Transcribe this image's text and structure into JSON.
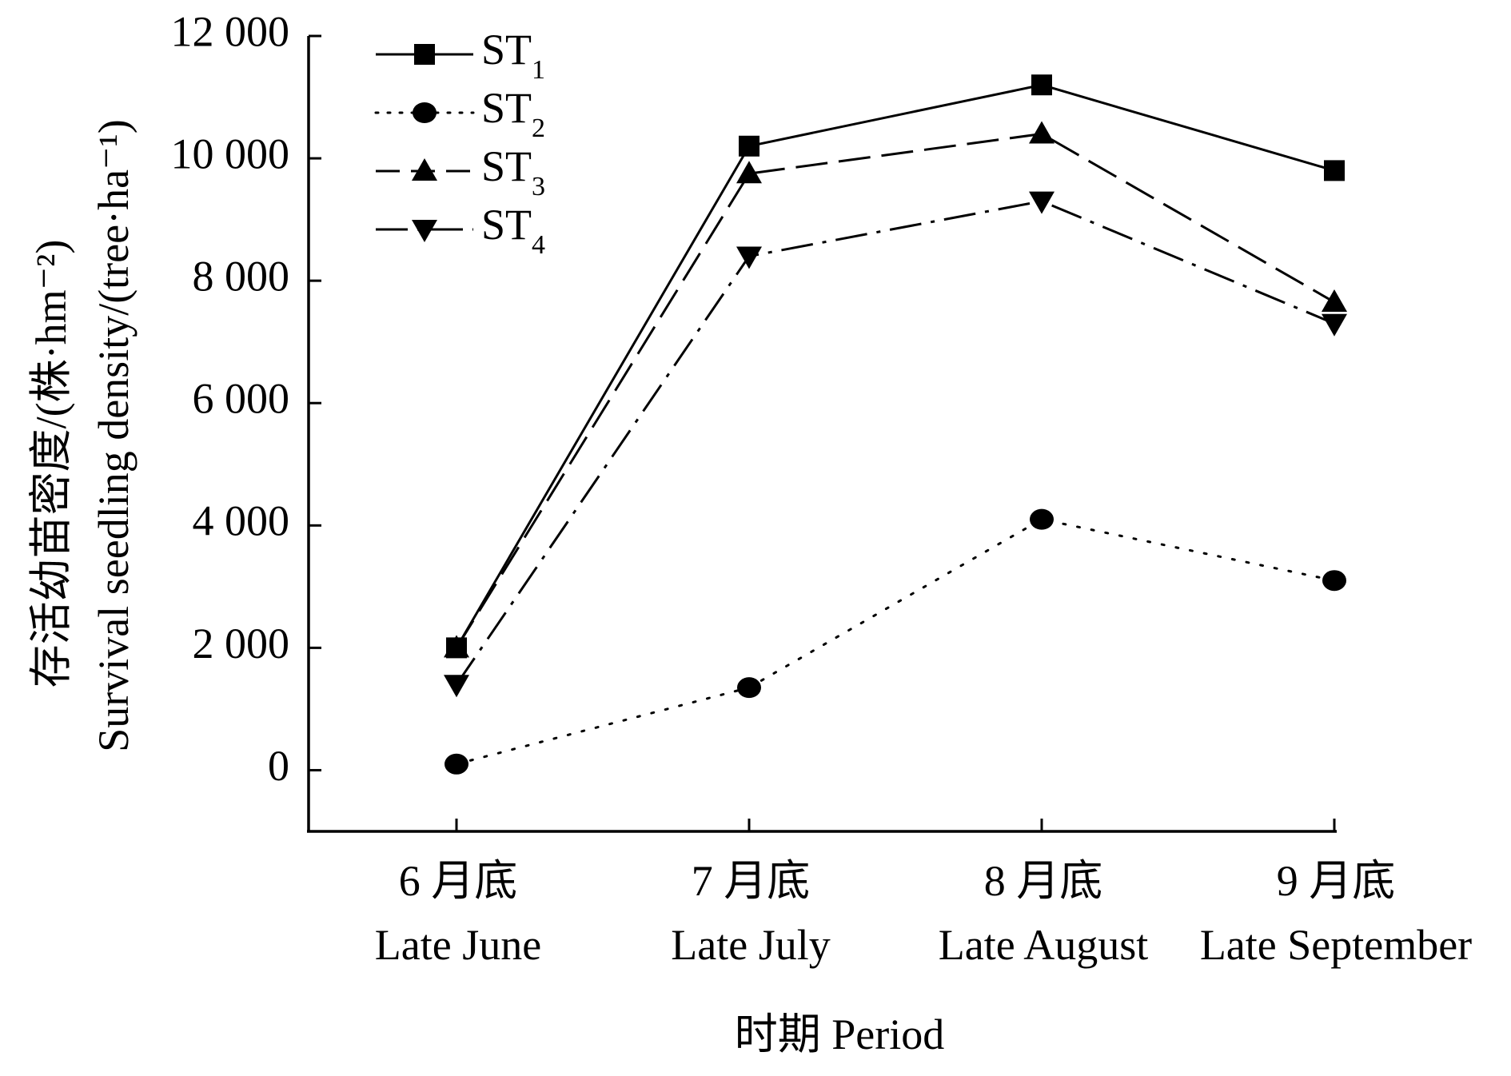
{
  "chart_data": {
    "type": "line",
    "xlabel": "时期 Period",
    "ylabel_cn": "存活幼苗密度/(株·hm⁻²)",
    "ylabel_en": "Survival seedling density/(tree·ha⁻¹)",
    "categories": [
      {
        "cn": "6 月底",
        "en": "Late June"
      },
      {
        "cn": "7 月底",
        "en": "Late July"
      },
      {
        "cn": "8 月底",
        "en": "Late August"
      },
      {
        "cn": "9 月底",
        "en": "Late September"
      }
    ],
    "ylim": [
      -1000,
      12000
    ],
    "yticks": [
      0,
      2000,
      4000,
      6000,
      8000,
      10000,
      12000
    ],
    "ytick_labels": [
      "0",
      "2 000",
      "4 000",
      "6 000",
      "8 000",
      "10 000",
      "12 000"
    ],
    "legend_position": "top-left",
    "grid": false,
    "series": [
      {
        "name": "ST",
        "sub": "1",
        "marker": "square",
        "dash": "solid",
        "values": [
          2000,
          10200,
          11200,
          9800
        ]
      },
      {
        "name": "ST",
        "sub": "2",
        "marker": "circle",
        "dash": "dotted",
        "values": [
          100,
          1350,
          4100,
          3100
        ]
      },
      {
        "name": "ST",
        "sub": "3",
        "marker": "triangle-up",
        "dash": "dashed",
        "values": [
          2000,
          9750,
          10400,
          7650
        ]
      },
      {
        "name": "ST",
        "sub": "4",
        "marker": "triangle-down",
        "dash": "dashdot",
        "values": [
          1400,
          8400,
          9300,
          7300
        ]
      }
    ]
  }
}
